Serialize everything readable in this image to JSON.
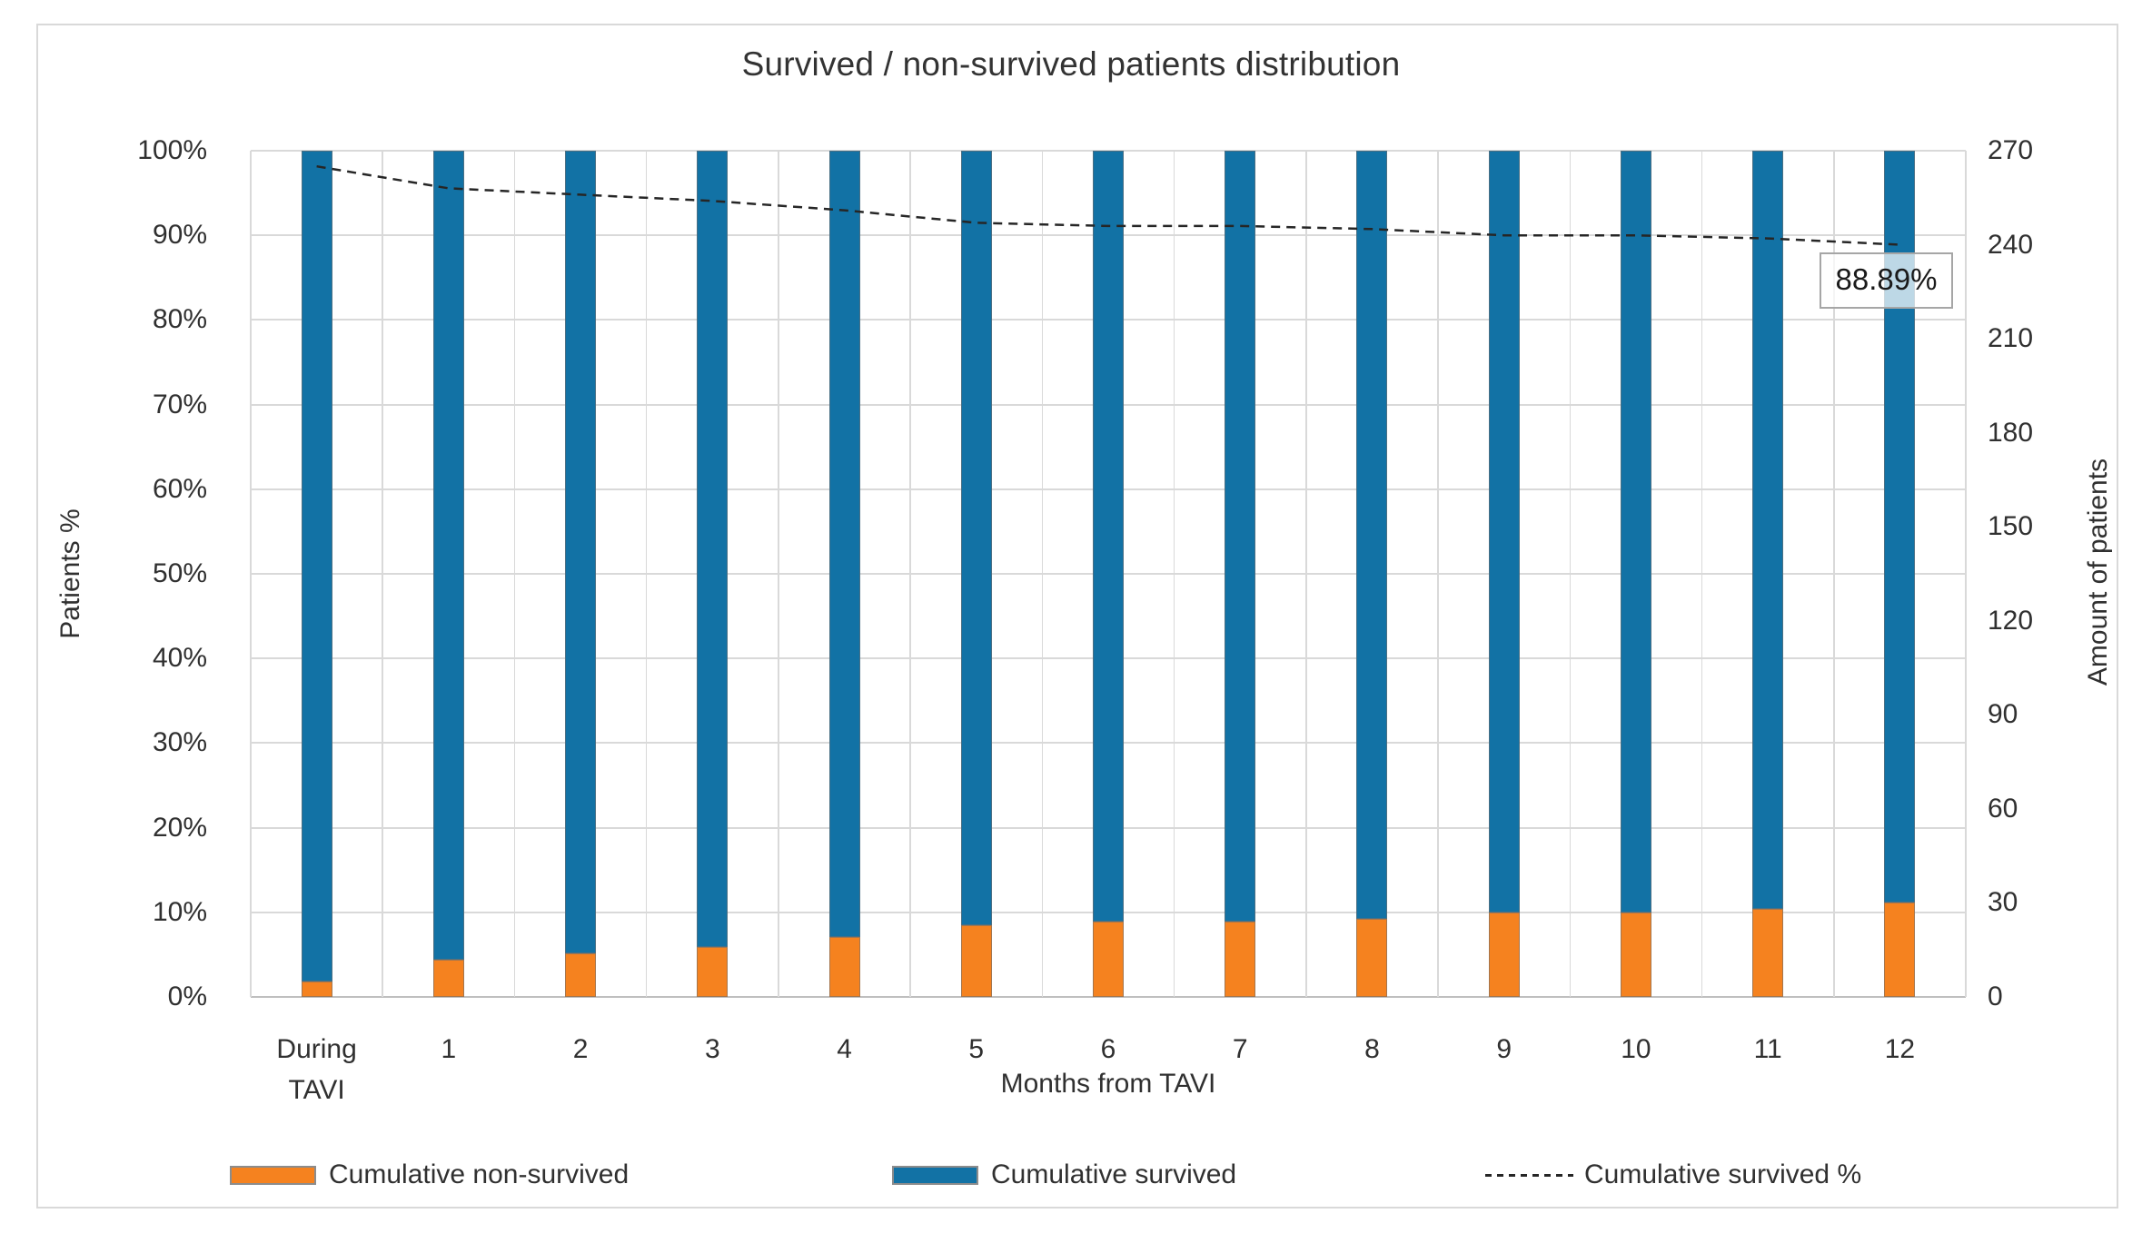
{
  "chart_data": {
    "type": "bar",
    "variant": "100-percent-stacked-columns-with-dashed-line-overlay",
    "title": "Survived / non-survived patients distribution",
    "categories": [
      "During\nTAVI",
      "1",
      "2",
      "3",
      "4",
      "5",
      "6",
      "7",
      "8",
      "9",
      "10",
      "11",
      "12"
    ],
    "x_axis": {
      "title": "Months from TAVI"
    },
    "y_left": {
      "title": "Patients %",
      "min": 0,
      "max": 100,
      "tick_step": 10,
      "ticks": [
        "0%",
        "10%",
        "20%",
        "30%",
        "40%",
        "50%",
        "60%",
        "70%",
        "80%",
        "90%",
        "100%"
      ]
    },
    "y_right": {
      "title": "Amount of patients",
      "min": 0,
      "max": 270,
      "tick_step": 30,
      "ticks": [
        "0",
        "30",
        "60",
        "90",
        "120",
        "150",
        "180",
        "210",
        "240",
        "270"
      ]
    },
    "total_patients": 270,
    "series": [
      {
        "name": "Cumulative non-survived",
        "type": "bar",
        "color": "#F5821F",
        "values_pct": [
          1.85,
          4.44,
          5.19,
          5.93,
          7.04,
          8.52,
          8.89,
          8.89,
          9.26,
          10.0,
          10.0,
          10.37,
          11.11
        ],
        "values_patients": [
          5,
          12,
          14,
          16,
          19,
          23,
          24,
          24,
          25,
          27,
          27,
          28,
          30
        ]
      },
      {
        "name": "Cumulative survived",
        "type": "bar",
        "color": "#1272A5",
        "values_pct": [
          98.15,
          95.56,
          94.81,
          94.07,
          92.96,
          91.48,
          91.11,
          91.11,
          90.74,
          90.0,
          90.0,
          89.63,
          88.89
        ],
        "values_patients": [
          265,
          258,
          256,
          254,
          251,
          247,
          246,
          246,
          245,
          243,
          243,
          242,
          240
        ]
      },
      {
        "name": "Cumulative survived %",
        "type": "line",
        "style": "dashed",
        "color": "#262626",
        "values_pct": [
          98.15,
          95.56,
          94.81,
          94.07,
          92.96,
          91.48,
          91.11,
          91.11,
          90.74,
          90.0,
          90.0,
          89.63,
          88.89
        ]
      }
    ],
    "annotation": {
      "text": "88.89%",
      "category": "12",
      "series": "Cumulative survived %"
    },
    "legend": {
      "position": "bottom",
      "entries": [
        "Cumulative non-survived",
        "Cumulative survived",
        "Cumulative survived %"
      ]
    },
    "colors": {
      "bar_non_survived": "#F5821F",
      "bar_survived": "#1272A5",
      "line": "#262626",
      "gridline": "#D9D9D9",
      "axis_line": "#BFBFBF",
      "text": "#303030"
    },
    "grid": {
      "horizontal": true,
      "vertical": true
    }
  }
}
